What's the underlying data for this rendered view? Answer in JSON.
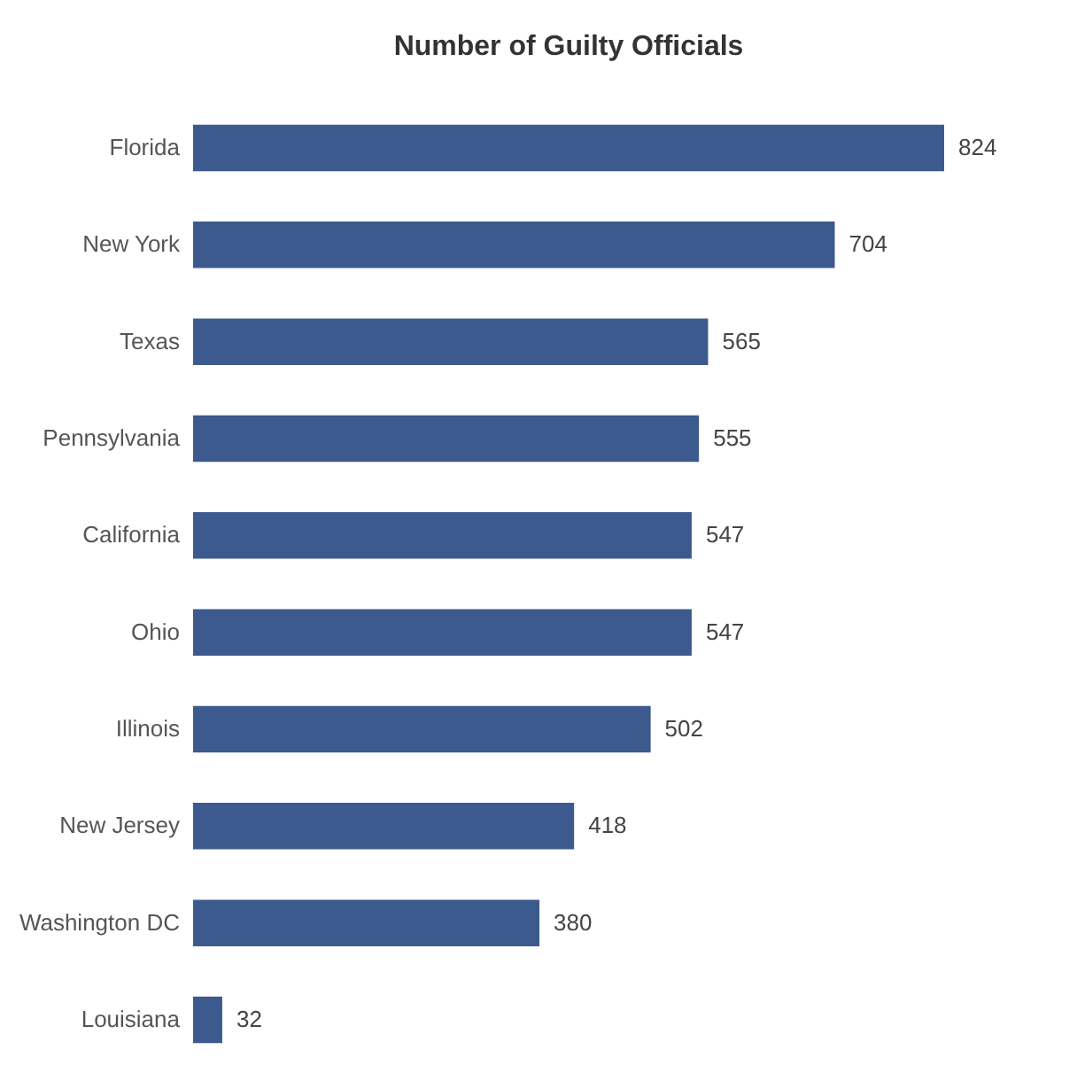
{
  "chart_data": {
    "type": "bar",
    "orientation": "horizontal",
    "title": "Number of Guilty Officials",
    "categories": [
      "Florida",
      "New York",
      "Texas",
      "Pennsylvania",
      "California",
      "Ohio",
      "Illinois",
      "New Jersey",
      "Washington DC",
      "Louisiana"
    ],
    "values": [
      824,
      704,
      565,
      555,
      547,
      547,
      502,
      418,
      380,
      32
    ],
    "color": "#3d5a8f",
    "data_labels": true
  }
}
